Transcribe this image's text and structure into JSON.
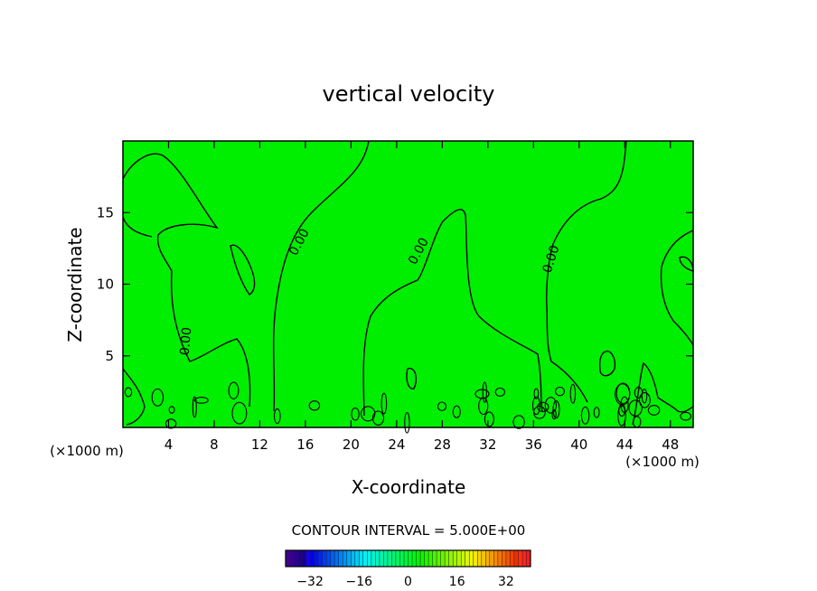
{
  "chart_data": {
    "type": "contour",
    "title": "vertical velocity",
    "xlabel": "X-coordinate",
    "ylabel": "Z-coordinate",
    "x_unit_label": "(×1000 m)",
    "x_unit_label_right": "(×1000 m)",
    "xlim": [
      0,
      50
    ],
    "ylim": [
      0,
      20
    ],
    "x_ticks": [
      4,
      8,
      12,
      16,
      20,
      24,
      28,
      32,
      36,
      40,
      44,
      48
    ],
    "y_ticks": [
      5,
      10,
      15
    ],
    "contour_interval_text": "CONTOUR INTERVAL = 5.000E+00",
    "contour_labels": [
      "0.00",
      "0.00",
      "0.00",
      "0.00"
    ],
    "field_value_approx": 0,
    "colorbar": {
      "range": [
        -40,
        40
      ],
      "ticks": [
        -32,
        -16,
        0,
        16,
        32
      ],
      "tick_labels": [
        "−32",
        "−16",
        "0",
        "16",
        "32"
      ]
    },
    "colors": {
      "field": "#00ee00",
      "contour": "#000000"
    }
  }
}
